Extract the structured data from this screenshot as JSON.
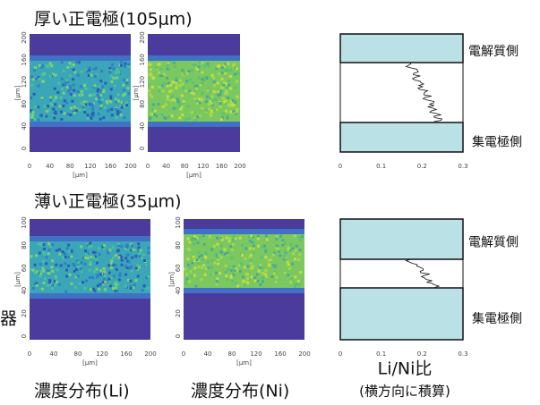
{
  "rows": [
    {
      "title": "厚い正電極(105μm)",
      "x_ticks": [
        "0",
        "40",
        "80",
        "120",
        "160",
        "200"
      ],
      "x_unit": "[μm]",
      "y_ticks": [
        "0",
        "40",
        "80",
        "120",
        "160",
        "200"
      ],
      "y_unit": "[μm]",
      "ratio_ticks": [
        "0",
        "0.1",
        "0.2",
        "0.3"
      ],
      "side_top": "電解質側",
      "side_bottom": "集電極側"
    },
    {
      "title": "薄い正電極(35μm)",
      "x_ticks": [
        "0",
        "40",
        "80",
        "120",
        "160",
        "200"
      ],
      "x_unit": "[μm]",
      "y_ticks": [
        "0",
        "20",
        "40",
        "60",
        "80",
        "100"
      ],
      "y_unit": "[μm]",
      "ratio_ticks": [
        "0",
        "0.1",
        "0.2",
        "0.3"
      ],
      "side_top": "電解質側",
      "side_bottom": "集電極側"
    }
  ],
  "cropped_text": "器",
  "captions": {
    "li": "濃度分布(Li)",
    "ni": "濃度分布(Ni)",
    "ratio": "Li/Ni比",
    "ratio_note": "(横方向に積算)"
  }
}
